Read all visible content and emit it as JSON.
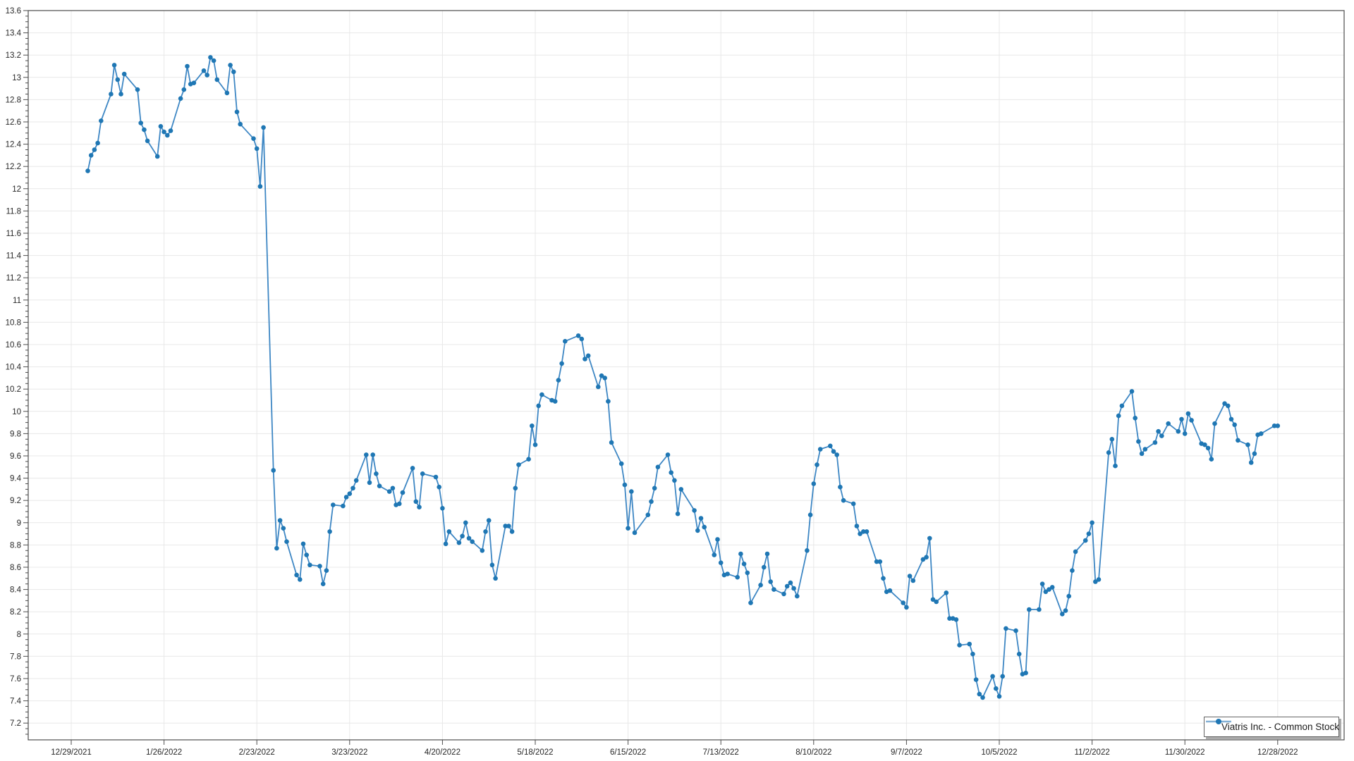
{
  "legend": {
    "label": "Viatris Inc. - Common Stock",
    "position": "bottom-right"
  },
  "colors": {
    "line": "#3e87c4",
    "marker": "#1f77b4",
    "legend_marker_line": "#85b1d6",
    "grid": "#e8e8e8",
    "axis_border": "#4d4d4d",
    "tick": "#4d4d4d",
    "tick_label": "#262626"
  },
  "chart_data": {
    "type": "line",
    "title": "",
    "xlabel": "",
    "ylabel": "",
    "grid": true,
    "legend_position": "bottom-right",
    "x_axis": {
      "tick_labels": [
        "12/29/2021",
        "1/26/2022",
        "2/23/2022",
        "3/23/2022",
        "4/20/2022",
        "5/18/2022",
        "6/15/2022",
        "7/13/2022",
        "8/10/2022",
        "9/7/2022",
        "10/5/2022",
        "11/2/2022",
        "11/30/2022",
        "12/28/2022"
      ],
      "start_date": "2021-12-29",
      "interval_days": 28
    },
    "y_axis": {
      "min_label": 7.2,
      "max_label": 13.6,
      "major_step": 0.2,
      "minor_step": 0.05
    },
    "series": [
      {
        "name": "Viatris Inc. - Common Stock",
        "points": [
          [
            "2022-01-03",
            12.16
          ],
          [
            "2022-01-04",
            12.3
          ],
          [
            "2022-01-05",
            12.35
          ],
          [
            "2022-01-06",
            12.41
          ],
          [
            "2022-01-07",
            12.61
          ],
          [
            "2022-01-10",
            12.85
          ],
          [
            "2022-01-11",
            13.11
          ],
          [
            "2022-01-12",
            12.98
          ],
          [
            "2022-01-13",
            12.85
          ],
          [
            "2022-01-14",
            13.03
          ],
          [
            "2022-01-18",
            12.89
          ],
          [
            "2022-01-19",
            12.59
          ],
          [
            "2022-01-20",
            12.53
          ],
          [
            "2022-01-21",
            12.43
          ],
          [
            "2022-01-24",
            12.29
          ],
          [
            "2022-01-25",
            12.56
          ],
          [
            "2022-01-26",
            12.51
          ],
          [
            "2022-01-27",
            12.48
          ],
          [
            "2022-01-28",
            12.52
          ],
          [
            "2022-01-31",
            12.81
          ],
          [
            "2022-02-01",
            12.89
          ],
          [
            "2022-02-02",
            13.1
          ],
          [
            "2022-02-03",
            12.94
          ],
          [
            "2022-02-04",
            12.95
          ],
          [
            "2022-02-07",
            13.06
          ],
          [
            "2022-02-08",
            13.02
          ],
          [
            "2022-02-09",
            13.18
          ],
          [
            "2022-02-10",
            13.15
          ],
          [
            "2022-02-11",
            12.98
          ],
          [
            "2022-02-14",
            12.86
          ],
          [
            "2022-02-15",
            13.11
          ],
          [
            "2022-02-16",
            13.05
          ],
          [
            "2022-02-17",
            12.69
          ],
          [
            "2022-02-18",
            12.58
          ],
          [
            "2022-02-22",
            12.45
          ],
          [
            "2022-02-23",
            12.36
          ],
          [
            "2022-02-24",
            12.02
          ],
          [
            "2022-02-25",
            12.55
          ],
          [
            "2022-02-28",
            9.47
          ],
          [
            "2022-03-01",
            8.77
          ],
          [
            "2022-03-02",
            9.02
          ],
          [
            "2022-03-03",
            8.95
          ],
          [
            "2022-03-04",
            8.83
          ],
          [
            "2022-03-07",
            8.53
          ],
          [
            "2022-03-08",
            8.49
          ],
          [
            "2022-03-09",
            8.81
          ],
          [
            "2022-03-10",
            8.71
          ],
          [
            "2022-03-11",
            8.62
          ],
          [
            "2022-03-14",
            8.61
          ],
          [
            "2022-03-15",
            8.45
          ],
          [
            "2022-03-16",
            8.57
          ],
          [
            "2022-03-17",
            8.92
          ],
          [
            "2022-03-18",
            9.16
          ],
          [
            "2022-03-21",
            9.15
          ],
          [
            "2022-03-22",
            9.23
          ],
          [
            "2022-03-23",
            9.26
          ],
          [
            "2022-03-24",
            9.31
          ],
          [
            "2022-03-25",
            9.38
          ],
          [
            "2022-03-28",
            9.61
          ],
          [
            "2022-03-29",
            9.36
          ],
          [
            "2022-03-30",
            9.61
          ],
          [
            "2022-03-31",
            9.44
          ],
          [
            "2022-04-01",
            9.33
          ],
          [
            "2022-04-04",
            9.28
          ],
          [
            "2022-04-05",
            9.31
          ],
          [
            "2022-04-06",
            9.16
          ],
          [
            "2022-04-07",
            9.17
          ],
          [
            "2022-04-08",
            9.27
          ],
          [
            "2022-04-11",
            9.49
          ],
          [
            "2022-04-12",
            9.19
          ],
          [
            "2022-04-13",
            9.14
          ],
          [
            "2022-04-14",
            9.44
          ],
          [
            "2022-04-18",
            9.41
          ],
          [
            "2022-04-19",
            9.32
          ],
          [
            "2022-04-20",
            9.13
          ],
          [
            "2022-04-21",
            8.81
          ],
          [
            "2022-04-22",
            8.92
          ],
          [
            "2022-04-25",
            8.82
          ],
          [
            "2022-04-26",
            8.88
          ],
          [
            "2022-04-27",
            9.0
          ],
          [
            "2022-04-28",
            8.86
          ],
          [
            "2022-04-29",
            8.83
          ],
          [
            "2022-05-02",
            8.75
          ],
          [
            "2022-05-03",
            8.92
          ],
          [
            "2022-05-04",
            9.02
          ],
          [
            "2022-05-05",
            8.62
          ],
          [
            "2022-05-06",
            8.5
          ],
          [
            "2022-05-09",
            8.97
          ],
          [
            "2022-05-10",
            8.97
          ],
          [
            "2022-05-11",
            8.92
          ],
          [
            "2022-05-12",
            9.31
          ],
          [
            "2022-05-13",
            9.52
          ],
          [
            "2022-05-16",
            9.57
          ],
          [
            "2022-05-17",
            9.87
          ],
          [
            "2022-05-18",
            9.7
          ],
          [
            "2022-05-19",
            10.05
          ],
          [
            "2022-05-20",
            10.15
          ],
          [
            "2022-05-23",
            10.1
          ],
          [
            "2022-05-24",
            10.09
          ],
          [
            "2022-05-25",
            10.28
          ],
          [
            "2022-05-26",
            10.43
          ],
          [
            "2022-05-27",
            10.63
          ],
          [
            "2022-05-31",
            10.68
          ],
          [
            "2022-06-01",
            10.65
          ],
          [
            "2022-06-02",
            10.47
          ],
          [
            "2022-06-03",
            10.5
          ],
          [
            "2022-06-06",
            10.22
          ],
          [
            "2022-06-07",
            10.32
          ],
          [
            "2022-06-08",
            10.3
          ],
          [
            "2022-06-09",
            10.09
          ],
          [
            "2022-06-10",
            9.72
          ],
          [
            "2022-06-13",
            9.53
          ],
          [
            "2022-06-14",
            9.34
          ],
          [
            "2022-06-15",
            8.95
          ],
          [
            "2022-06-16",
            9.28
          ],
          [
            "2022-06-17",
            8.91
          ],
          [
            "2022-06-21",
            9.07
          ],
          [
            "2022-06-22",
            9.19
          ],
          [
            "2022-06-23",
            9.31
          ],
          [
            "2022-06-24",
            9.5
          ],
          [
            "2022-06-27",
            9.61
          ],
          [
            "2022-06-28",
            9.45
          ],
          [
            "2022-06-29",
            9.38
          ],
          [
            "2022-06-30",
            9.08
          ],
          [
            "2022-07-01",
            9.3
          ],
          [
            "2022-07-05",
            9.11
          ],
          [
            "2022-07-06",
            8.93
          ],
          [
            "2022-07-07",
            9.04
          ],
          [
            "2022-07-08",
            8.96
          ],
          [
            "2022-07-11",
            8.71
          ],
          [
            "2022-07-12",
            8.85
          ],
          [
            "2022-07-13",
            8.64
          ],
          [
            "2022-07-14",
            8.53
          ],
          [
            "2022-07-15",
            8.54
          ],
          [
            "2022-07-18",
            8.51
          ],
          [
            "2022-07-19",
            8.72
          ],
          [
            "2022-07-20",
            8.63
          ],
          [
            "2022-07-21",
            8.55
          ],
          [
            "2022-07-22",
            8.28
          ],
          [
            "2022-07-25",
            8.44
          ],
          [
            "2022-07-26",
            8.6
          ],
          [
            "2022-07-27",
            8.72
          ],
          [
            "2022-07-28",
            8.47
          ],
          [
            "2022-07-29",
            8.4
          ],
          [
            "2022-08-01",
            8.36
          ],
          [
            "2022-08-02",
            8.43
          ],
          [
            "2022-08-03",
            8.46
          ],
          [
            "2022-08-04",
            8.41
          ],
          [
            "2022-08-05",
            8.34
          ],
          [
            "2022-08-08",
            8.75
          ],
          [
            "2022-08-09",
            9.07
          ],
          [
            "2022-08-10",
            9.35
          ],
          [
            "2022-08-11",
            9.52
          ],
          [
            "2022-08-12",
            9.66
          ],
          [
            "2022-08-15",
            9.69
          ],
          [
            "2022-08-16",
            9.64
          ],
          [
            "2022-08-17",
            9.61
          ],
          [
            "2022-08-18",
            9.32
          ],
          [
            "2022-08-19",
            9.2
          ],
          [
            "2022-08-22",
            9.17
          ],
          [
            "2022-08-23",
            8.97
          ],
          [
            "2022-08-24",
            8.9
          ],
          [
            "2022-08-25",
            8.92
          ],
          [
            "2022-08-26",
            8.92
          ],
          [
            "2022-08-29",
            8.65
          ],
          [
            "2022-08-30",
            8.65
          ],
          [
            "2022-08-31",
            8.5
          ],
          [
            "2022-09-01",
            8.38
          ],
          [
            "2022-09-02",
            8.39
          ],
          [
            "2022-09-06",
            8.28
          ],
          [
            "2022-09-07",
            8.24
          ],
          [
            "2022-09-08",
            8.52
          ],
          [
            "2022-09-09",
            8.48
          ],
          [
            "2022-09-12",
            8.67
          ],
          [
            "2022-09-13",
            8.69
          ],
          [
            "2022-09-14",
            8.86
          ],
          [
            "2022-09-15",
            8.31
          ],
          [
            "2022-09-16",
            8.29
          ],
          [
            "2022-09-19",
            8.37
          ],
          [
            "2022-09-20",
            8.14
          ],
          [
            "2022-09-21",
            8.14
          ],
          [
            "2022-09-22",
            8.13
          ],
          [
            "2022-09-23",
            7.9
          ],
          [
            "2022-09-26",
            7.91
          ],
          [
            "2022-09-27",
            7.82
          ],
          [
            "2022-09-28",
            7.59
          ],
          [
            "2022-09-29",
            7.46
          ],
          [
            "2022-09-30",
            7.43
          ],
          [
            "2022-10-03",
            7.62
          ],
          [
            "2022-10-04",
            7.51
          ],
          [
            "2022-10-05",
            7.44
          ],
          [
            "2022-10-06",
            7.62
          ],
          [
            "2022-10-07",
            8.05
          ],
          [
            "2022-10-10",
            8.03
          ],
          [
            "2022-10-11",
            7.82
          ],
          [
            "2022-10-12",
            7.64
          ],
          [
            "2022-10-13",
            7.65
          ],
          [
            "2022-10-14",
            8.22
          ],
          [
            "2022-10-17",
            8.22
          ],
          [
            "2022-10-18",
            8.45
          ],
          [
            "2022-10-19",
            8.38
          ],
          [
            "2022-10-20",
            8.4
          ],
          [
            "2022-10-21",
            8.42
          ],
          [
            "2022-10-24",
            8.18
          ],
          [
            "2022-10-25",
            8.21
          ],
          [
            "2022-10-26",
            8.34
          ],
          [
            "2022-10-27",
            8.57
          ],
          [
            "2022-10-28",
            8.74
          ],
          [
            "2022-10-31",
            8.84
          ],
          [
            "2022-11-01",
            8.9
          ],
          [
            "2022-11-02",
            9.0
          ],
          [
            "2022-11-03",
            8.47
          ],
          [
            "2022-11-04",
            8.49
          ],
          [
            "2022-11-07",
            9.63
          ],
          [
            "2022-11-08",
            9.75
          ],
          [
            "2022-11-09",
            9.51
          ],
          [
            "2022-11-10",
            9.96
          ],
          [
            "2022-11-11",
            10.05
          ],
          [
            "2022-11-14",
            10.18
          ],
          [
            "2022-11-15",
            9.94
          ],
          [
            "2022-11-16",
            9.73
          ],
          [
            "2022-11-17",
            9.62
          ],
          [
            "2022-11-18",
            9.66
          ],
          [
            "2022-11-21",
            9.72
          ],
          [
            "2022-11-22",
            9.82
          ],
          [
            "2022-11-23",
            9.78
          ],
          [
            "2022-11-25",
            9.89
          ],
          [
            "2022-11-28",
            9.82
          ],
          [
            "2022-11-29",
            9.93
          ],
          [
            "2022-11-30",
            9.8
          ],
          [
            "2022-12-01",
            9.98
          ],
          [
            "2022-12-02",
            9.92
          ],
          [
            "2022-12-05",
            9.71
          ],
          [
            "2022-12-06",
            9.7
          ],
          [
            "2022-12-07",
            9.67
          ],
          [
            "2022-12-08",
            9.57
          ],
          [
            "2022-12-09",
            9.89
          ],
          [
            "2022-12-12",
            10.07
          ],
          [
            "2022-12-13",
            10.05
          ],
          [
            "2022-12-14",
            9.93
          ],
          [
            "2022-12-15",
            9.88
          ],
          [
            "2022-12-16",
            9.74
          ],
          [
            "2022-12-19",
            9.7
          ],
          [
            "2022-12-20",
            9.54
          ],
          [
            "2022-12-21",
            9.62
          ],
          [
            "2022-12-22",
            9.79
          ],
          [
            "2022-12-23",
            9.8
          ],
          [
            "2022-12-27",
            9.87
          ],
          [
            "2022-12-28",
            9.87
          ]
        ]
      }
    ]
  }
}
